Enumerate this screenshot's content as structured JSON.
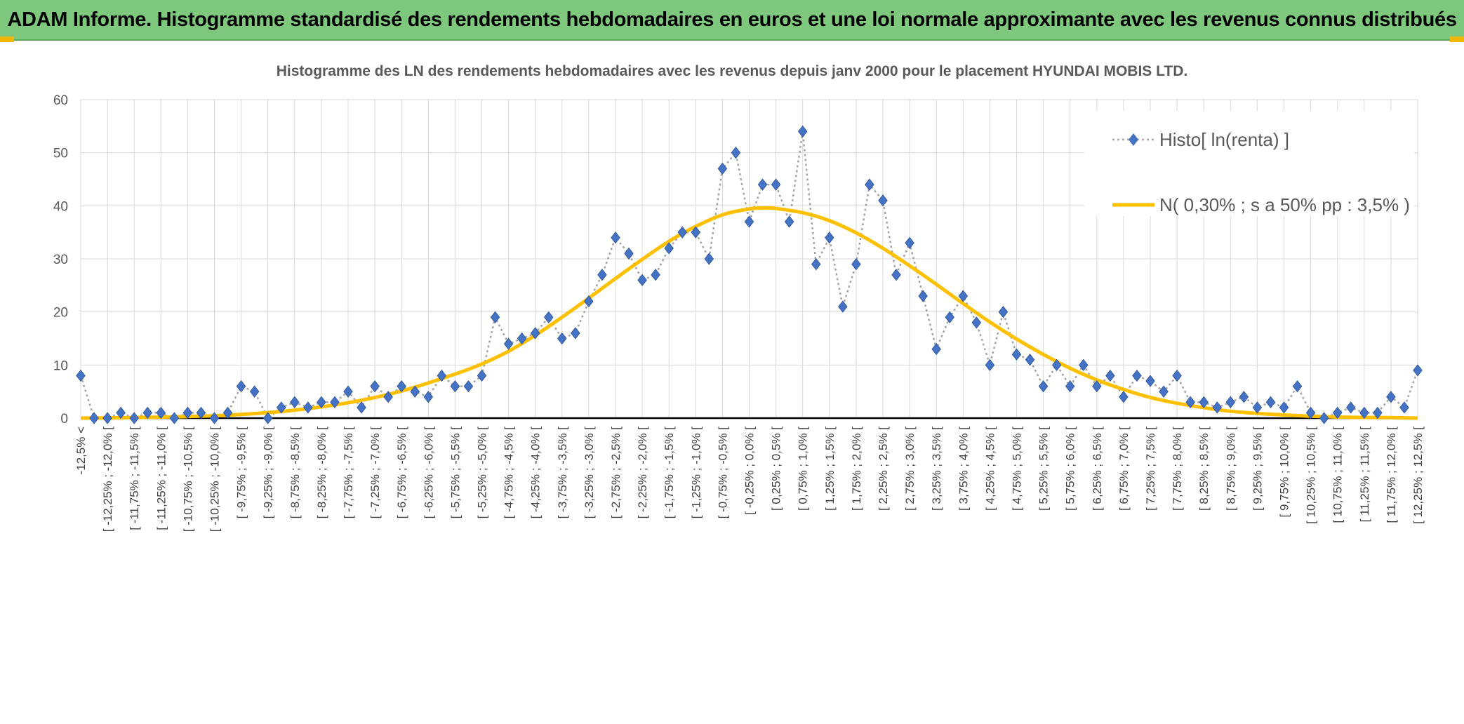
{
  "banner": {
    "title": "ADAM Informe. Histogramme standardisé des rendements hebdomadaires en euros et une loi normale approximante avec les revenus connus distribués",
    "bg_color": "#7dc87d"
  },
  "chart_data": {
    "type": "line",
    "title": "Histogramme des LN des rendements hebdomadaires avec les revenus depuis janv 2000 pour le placement HYUNDAI MOBIS LTD.",
    "xlabel": "",
    "ylabel": "",
    "ylim": [
      0,
      60
    ],
    "yticks": [
      0,
      10,
      20,
      30,
      40,
      50,
      60
    ],
    "grid": true,
    "legend_position": "top-right",
    "categories": [
      "-12,5% <",
      "[ -12,25% ; -12,0% [",
      "[ -11,75% ; -11,5% [",
      "[ -11,25% ; -11,0% [",
      "[ -10,75% ; -10,5% [",
      "[ -10,25% ; -10,0% [",
      "[ -9,75% ; -9,5% [",
      "[ -9,25% ; -9,0% [",
      "[ -8,75% ; -8,5% [",
      "[ -8,25% ; -8,0% [",
      "[ -7,75% ; -7,5% [",
      "[ -7,25% ; -7,0% [",
      "[ -6,75% ; -6,5% [",
      "[ -6,25% ; -6,0% [",
      "[ -5,75% ; -5,5% [",
      "[ -5,25% ; -5,0% [",
      "[ -4,75% ; -4,5% [",
      "[ -4,25% ; -4,0% [",
      "[ -3,75% ; -3,5% [",
      "[ -3,25% ; -3,0% [",
      "[ -2,75% ; -2,5% [",
      "[ -2,25% ; -2,0% [",
      "[ -1,75% ; -1,5% [",
      "[ -1,25% ; -1,0% [",
      "[ -0,75% ; -0,5% [",
      "[ -0,25% ; 0,0% [",
      "[ 0,25% ; 0,5% [",
      "[ 0,75% ; 1,0% [",
      "[ 1,25% ; 1,5% [",
      "[ 1,75% ; 2,0% [",
      "[ 2,25% ; 2,5% [",
      "[ 2,75% ; 3,0% [",
      "[ 3,25% ; 3,5% [",
      "[ 3,75% ; 4,0% [",
      "[ 4,25% ; 4,5% [",
      "[ 4,75% ; 5,0% [",
      "[ 5,25% ; 5,5% [",
      "[ 5,75% ; 6,0% [",
      "[ 6,25% ; 6,5% [",
      "[ 6,75% ; 7,0% [",
      "[ 7,25% ; 7,5% [",
      "[ 7,75% ; 8,0% [",
      "[ 8,25% ; 8,5% [",
      "[ 8,75% ; 9,0% [",
      "[ 9,25% ; 9,5% [",
      "[ 9,75% ; 10,0% [",
      "[ 10,25% ; 10,5% [",
      "[ 10,75% ; 11,0% [",
      "[ 11,25% ; 11,5% [",
      "[ 11,75% ; 12,0% [",
      "[ 12,25% ; 12,5% ["
    ],
    "series": [
      {
        "name": "Histo[ ln(renta) ]",
        "color": "#4472c4",
        "line_color": "#a6a6a6",
        "marker": "diamond",
        "x": [
          -12.5,
          -12.25,
          -12,
          -11.75,
          -11.5,
          -11.25,
          -11,
          -10.75,
          -10.5,
          -10.25,
          -10,
          -9.75,
          -9.5,
          -9.25,
          -9,
          -8.75,
          -8.5,
          -8.25,
          -8,
          -7.75,
          -7.5,
          -7.25,
          -7,
          -6.75,
          -6.5,
          -6.25,
          -6,
          -5.75,
          -5.5,
          -5.25,
          -5,
          -4.75,
          -4.5,
          -4.25,
          -4,
          -3.75,
          -3.5,
          -3.25,
          -3,
          -2.75,
          -2.5,
          -2.25,
          -2,
          -1.75,
          -1.5,
          -1.25,
          -1,
          -0.75,
          -0.5,
          -0.25,
          0,
          0.25,
          0.5,
          0.75,
          1,
          1.25,
          1.5,
          1.75,
          2,
          2.25,
          2.5,
          2.75,
          3,
          3.25,
          3.5,
          3.75,
          4,
          4.25,
          4.5,
          4.75,
          5,
          5.25,
          5.5,
          5.75,
          6,
          6.25,
          6.5,
          6.75,
          7,
          7.25,
          7.5,
          7.75,
          8,
          8.25,
          8.5,
          8.75,
          9,
          9.25,
          9.5,
          9.75,
          10,
          10.25,
          10.5,
          10.75,
          11,
          11.25,
          11.5,
          11.75,
          12,
          12.25,
          12.5
        ],
        "values": [
          8,
          0,
          0,
          1,
          0,
          1,
          1,
          0,
          1,
          1,
          0,
          1,
          6,
          5,
          0,
          2,
          3,
          2,
          3,
          3,
          5,
          2,
          6,
          4,
          6,
          5,
          4,
          8,
          6,
          6,
          8,
          19,
          14,
          15,
          16,
          19,
          15,
          16,
          22,
          27,
          34,
          31,
          26,
          27,
          32,
          35,
          35,
          30,
          47,
          50,
          37,
          44,
          44,
          37,
          54,
          29,
          34,
          21,
          29,
          44,
          41,
          27,
          33,
          23,
          13,
          19,
          23,
          18,
          10,
          20,
          12,
          11,
          6,
          10,
          6,
          10,
          6,
          8,
          4,
          8,
          7,
          5,
          8,
          3,
          3,
          2,
          3,
          4,
          2,
          3,
          2,
          6,
          1,
          0,
          1,
          2,
          1,
          1,
          4,
          2,
          9
        ]
      },
      {
        "name": "N( 0,30% ; s a 50% pp : 3,5% )",
        "color": "#ffc000",
        "type": "line",
        "x": [
          -12.5,
          -11.5,
          -10.5,
          -9.5,
          -8.5,
          -7.5,
          -6.5,
          -5.5,
          -5,
          -4.5,
          -4,
          -3.5,
          -3,
          -2.5,
          -2,
          -1.5,
          -1,
          -0.5,
          0,
          0.3,
          0.5,
          1,
          1.5,
          2,
          2.5,
          3,
          3.5,
          4,
          4.5,
          5,
          5.5,
          6,
          6.5,
          7,
          7.5,
          8,
          9,
          10,
          11,
          12,
          12.5
        ],
        "values": [
          0,
          0.1,
          0.3,
          0.7,
          1.5,
          2.9,
          5.1,
          8.3,
          10.2,
          12.6,
          15.6,
          19.0,
          22.6,
          26.3,
          29.9,
          33.3,
          36.1,
          38.3,
          39.4,
          39.6,
          39.5,
          38.7,
          37.2,
          34.9,
          32.0,
          28.7,
          25.2,
          21.6,
          18.1,
          14.9,
          12.0,
          9.4,
          7.2,
          5.4,
          3.9,
          2.8,
          1.3,
          0.6,
          0.2,
          0.1,
          0
        ]
      }
    ]
  }
}
